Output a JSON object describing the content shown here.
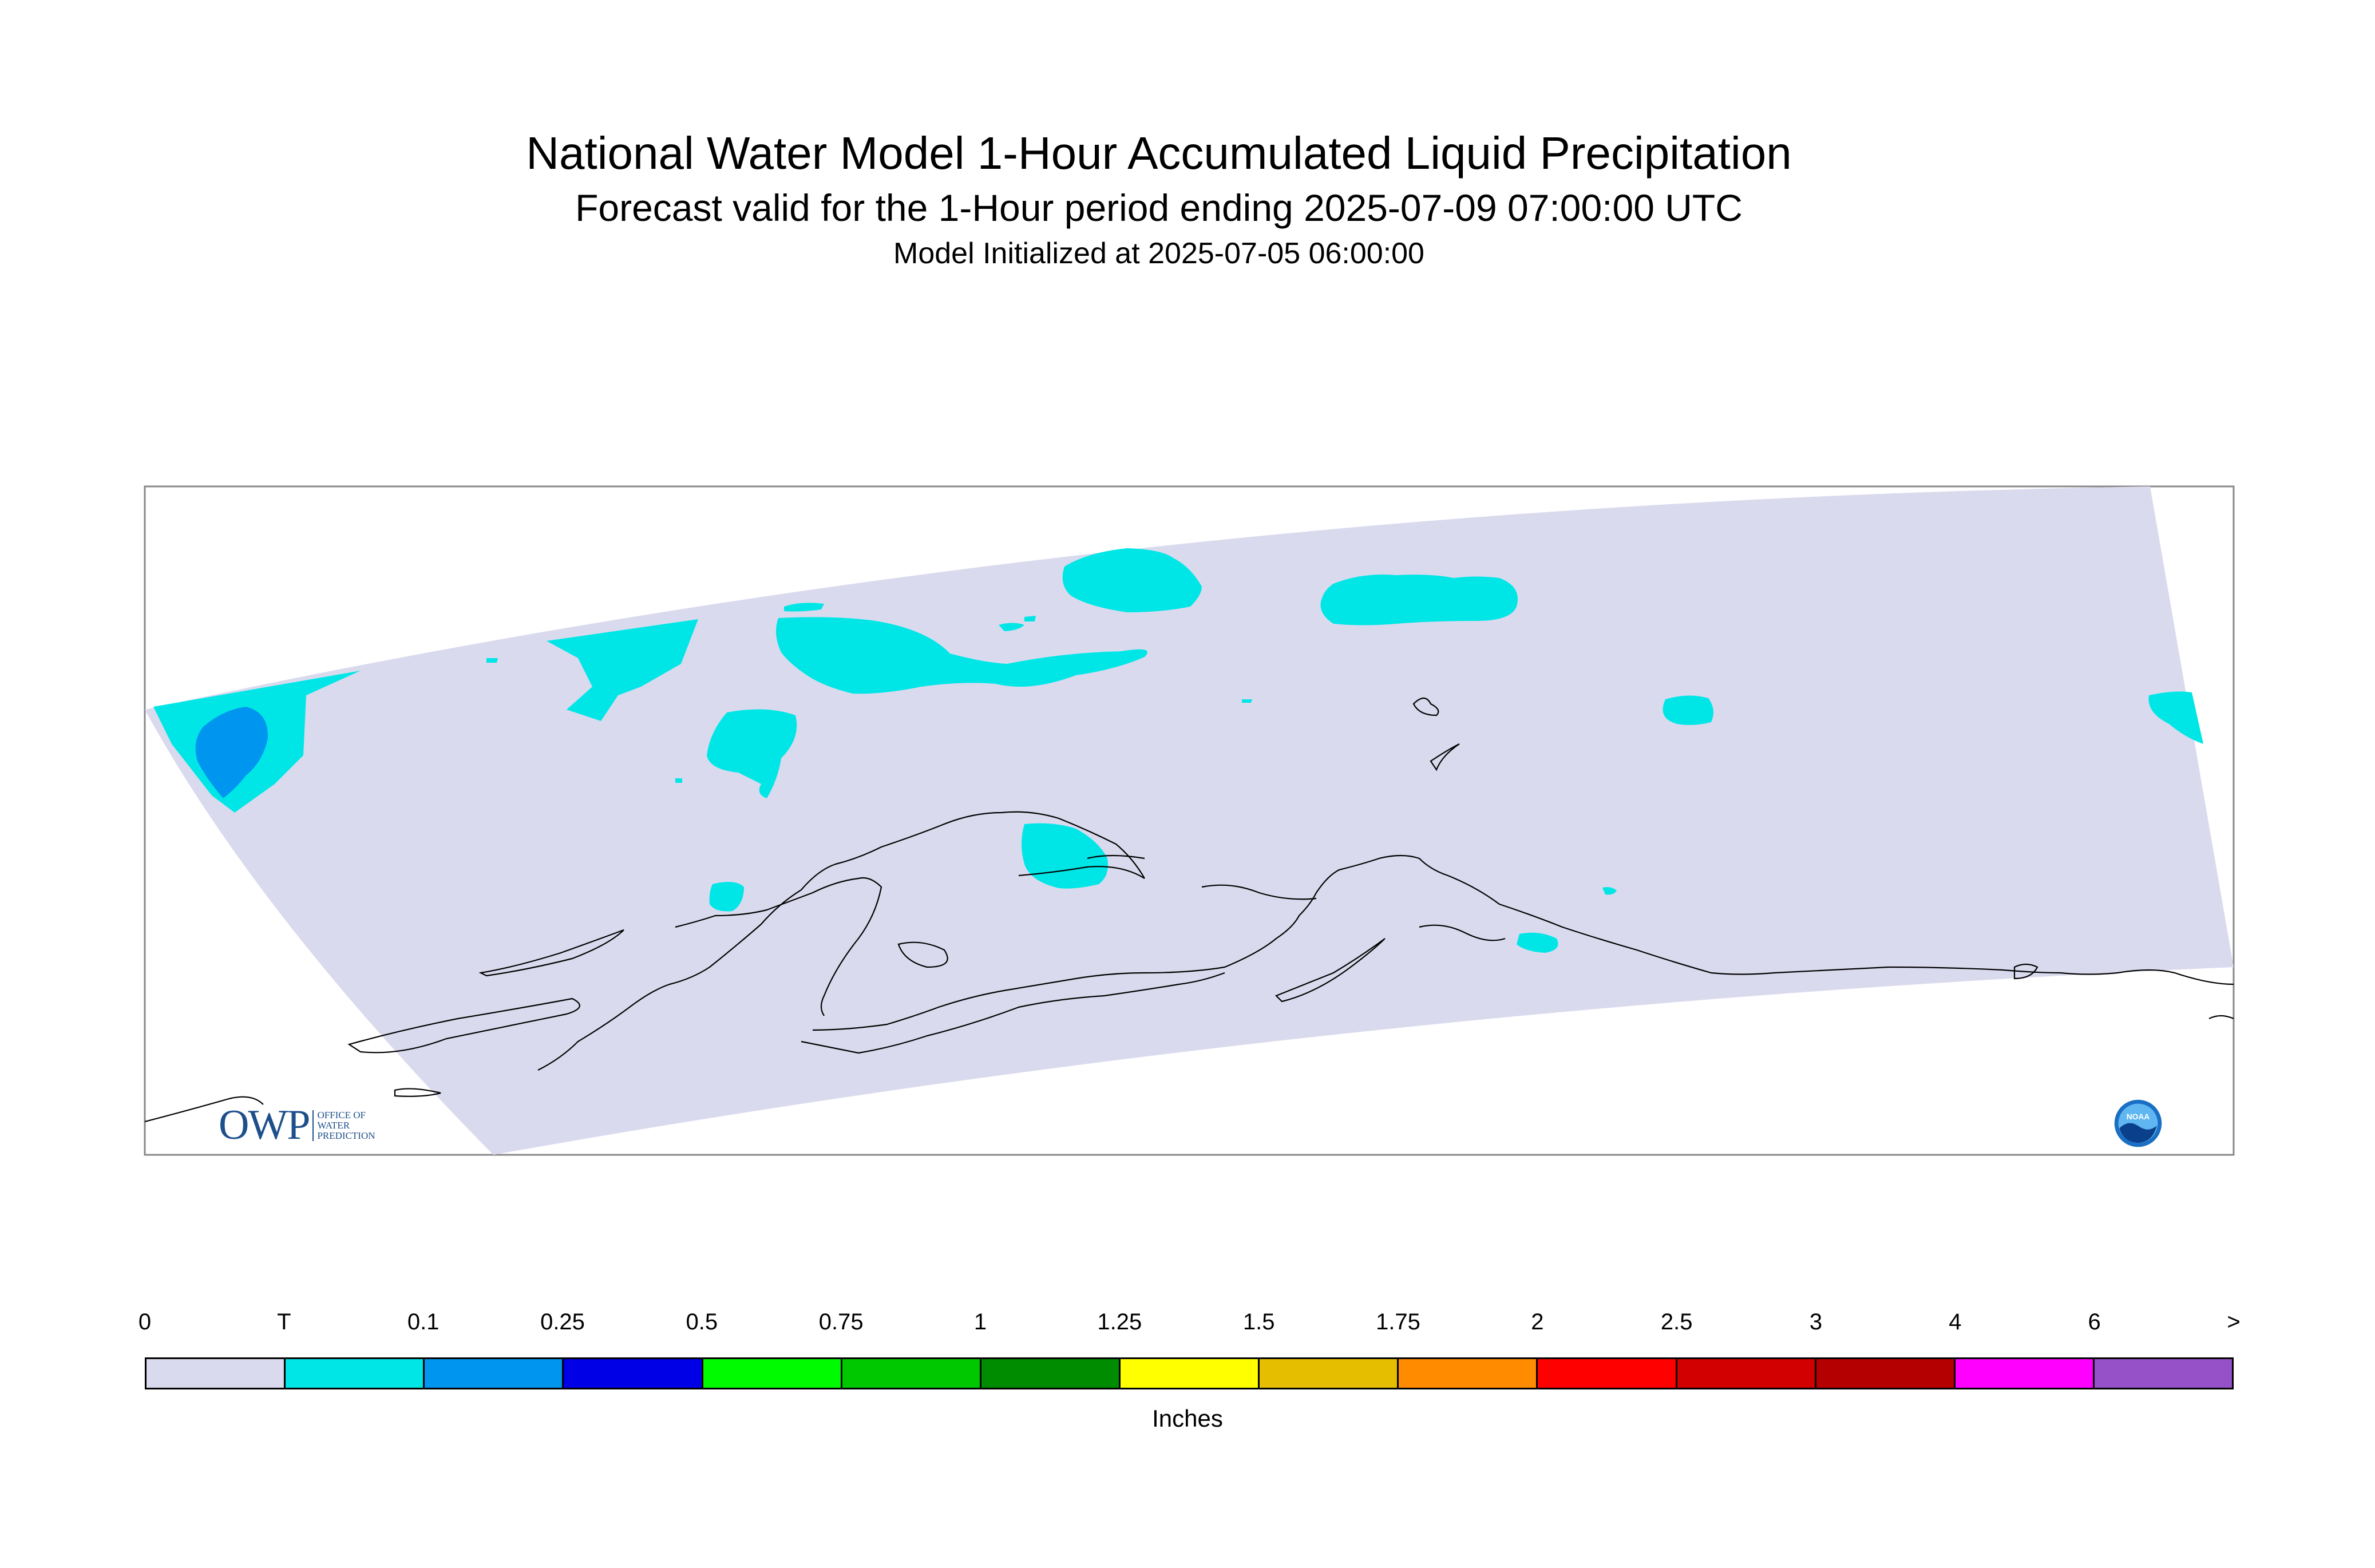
{
  "title": "National Water Model 1-Hour Accumulated Liquid Precipitation",
  "subtitle": "Forecast valid for the 1-Hour period ending 2025-07-09 07:00:00 UTC",
  "init_line": "Model Initialized at 2025-07-05 06:00:00",
  "legend": {
    "labels": [
      "0",
      "T",
      "0.1",
      "0.25",
      "0.5",
      "0.75",
      "1",
      "1.25",
      "1.5",
      "1.75",
      "2",
      "2.5",
      "3",
      "4",
      "6",
      ">"
    ],
    "colors": [
      "#dadaee",
      "#00e6e6",
      "#0096f0",
      "#0000e6",
      "#00fa00",
      "#00c800",
      "#008c00",
      "#ffff00",
      "#e6be00",
      "#ff8c00",
      "#ff0000",
      "#d20000",
      "#b40000",
      "#ff00ff",
      "#9650c8"
    ],
    "units": "Inches"
  },
  "colors": {
    "domain_fill": "#dadaee",
    "trace": "#00e6e6",
    "light_blue": "#0096f0",
    "coastline": "#000000"
  },
  "logos": {
    "owp_mark": "OWP",
    "owp_text": [
      "OFFICE OF",
      "WATER",
      "PREDICTION"
    ],
    "noaa_text": "NOAA"
  }
}
